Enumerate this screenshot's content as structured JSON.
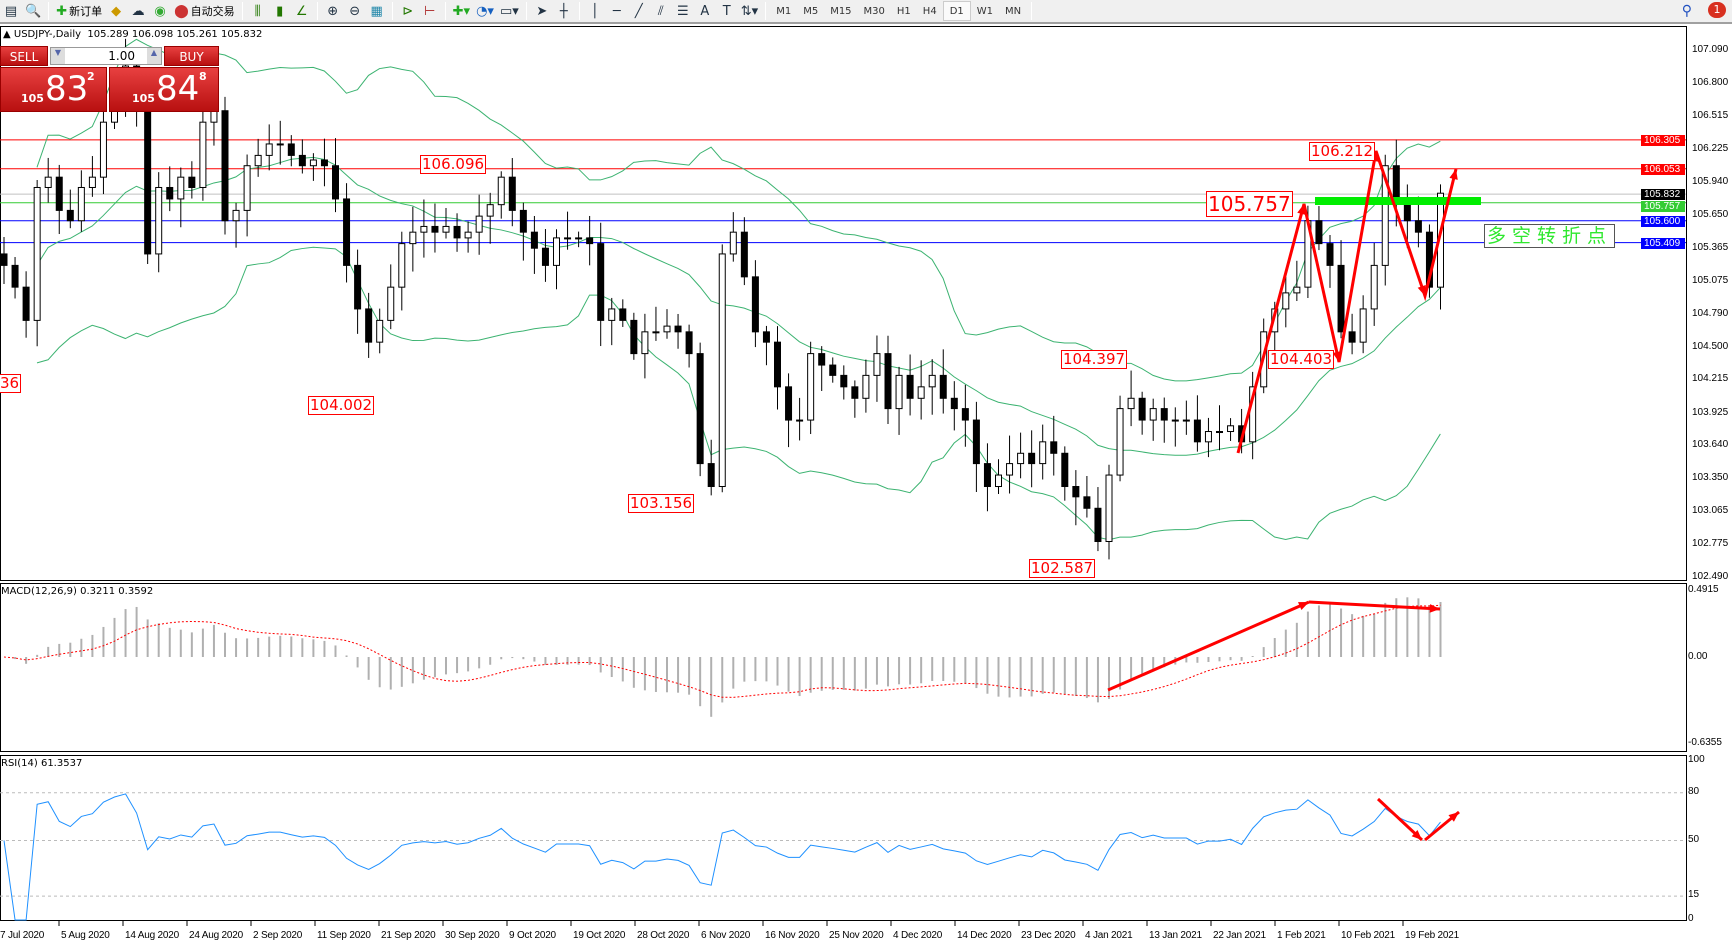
{
  "toolbar": {
    "new_order": "新订单",
    "auto_trading": "自动交易",
    "timeframes": [
      "M1",
      "M5",
      "M15",
      "M30",
      "H1",
      "H4",
      "D1",
      "W1",
      "MN"
    ],
    "active_timeframe": "D1",
    "notifications": "1"
  },
  "chart": {
    "title": "USDJPY-,Daily",
    "ohlc": "105.289 106.098 105.261 105.832",
    "macd_label": "MACD(12,26,9) 0.3211 0.3592",
    "rsi_label": "RSI(14) 61.3537"
  },
  "one_click": {
    "sell": "SELL",
    "buy": "BUY",
    "lot": "1.00",
    "bid_big": "105",
    "bid_main": "83",
    "bid_sup": "2",
    "ask_big": "105",
    "ask_main": "84",
    "ask_sup": "8"
  },
  "price_axis": [
    "107.090",
    "106.800",
    "106.515",
    "106.225",
    "105.940",
    "105.650",
    "105.365",
    "105.075",
    "104.790",
    "104.500",
    "104.215",
    "103.925",
    "103.640",
    "103.350",
    "103.065",
    "102.775",
    "102.490"
  ],
  "macd_axis": [
    "0.4915",
    "0.00",
    "-0.6355"
  ],
  "rsi_axis": [
    "100",
    "80",
    "50",
    "15",
    "0"
  ],
  "dates": [
    "7 Jul 2020",
    "5 Aug 2020",
    "14 Aug 2020",
    "24 Aug 2020",
    "2 Sep 2020",
    "11 Sep 2020",
    "21 Sep 2020",
    "30 Sep 2020",
    "9 Oct 2020",
    "19 Oct 2020",
    "28 Oct 2020",
    "6 Nov 2020",
    "16 Nov 2020",
    "25 Nov 2020",
    "4 Dec 2020",
    "14 Dec 2020",
    "23 Dec 2020",
    "4 Jan 2021",
    "13 Jan 2021",
    "22 Jan 2021",
    "1 Feb 2021",
    "10 Feb 2021",
    "19 Feb 2021"
  ],
  "levels": [
    {
      "price": 106.305,
      "label": "106.305",
      "color": "#ff0000"
    },
    {
      "price": 106.053,
      "label": "106.053",
      "color": "#ff0000"
    },
    {
      "price": 105.832,
      "label": "105.832",
      "color": "#000000",
      "line": "#c0c0c0"
    },
    {
      "price": 105.757,
      "label": "105.757",
      "color": "#33cc33"
    },
    {
      "price": 105.6,
      "label": "105.600",
      "color": "#0000ff"
    },
    {
      "price": 105.409,
      "label": "105.409",
      "color": "#0000ff"
    }
  ],
  "annotations": [
    "106.096",
    "104.002",
    "103.156",
    "102.587",
    "104.397",
    "104.403",
    "106.212",
    "105.757",
    "36"
  ],
  "turning_point_text": "多空转折点",
  "colors": {
    "band": "#3cb371",
    "arrow": "#ff0000",
    "rsi": "#1e90ff",
    "signal": "#ff0000",
    "highlight": "#00ee00"
  },
  "chart_data": {
    "type": "candlestick",
    "symbol": "USDJPY",
    "timeframe": "Daily",
    "ylim": [
      102.49,
      107.09
    ],
    "close": [
      105.21,
      105.02,
      104.73,
      105.89,
      105.98,
      105.69,
      105.6,
      105.89,
      105.98,
      106.46,
      106.75,
      106.95,
      106.56,
      105.31,
      105.89,
      105.79,
      105.98,
      105.89,
      106.46,
      106.56,
      105.6,
      105.69,
      106.08,
      106.17,
      106.27,
      106.27,
      106.17,
      106.08,
      106.13,
      106.08,
      105.79,
      105.21,
      104.83,
      104.54,
      104.73,
      105.02,
      105.4,
      105.5,
      105.55,
      105.5,
      105.55,
      105.45,
      105.5,
      105.64,
      105.74,
      105.98,
      105.69,
      105.5,
      105.36,
      105.21,
      105.45,
      105.45,
      105.45,
      105.4,
      104.73,
      104.83,
      104.73,
      104.44,
      104.63,
      104.63,
      104.68,
      104.63,
      104.44,
      103.48,
      103.28,
      105.31,
      105.5,
      105.11,
      104.63,
      104.54,
      104.15,
      103.86,
      103.86,
      104.44,
      104.34,
      104.25,
      104.15,
      104.05,
      104.25,
      104.44,
      103.96,
      104.25,
      104.05,
      104.15,
      104.25,
      104.05,
      103.96,
      103.86,
      103.48,
      103.28,
      103.38,
      103.48,
      103.57,
      103.48,
      103.67,
      103.57,
      103.28,
      103.19,
      103.09,
      102.8,
      103.38,
      103.96,
      104.05,
      103.86,
      103.96,
      103.86,
      103.86,
      103.86,
      103.67,
      103.76,
      103.76,
      103.81,
      103.67,
      104.15,
      104.63,
      104.83,
      104.97,
      105.02,
      105.6,
      105.4,
      105.21,
      104.63,
      104.54,
      104.83,
      105.21,
      106.08,
      105.79,
      105.6,
      105.5,
      105.02,
      105.84
    ],
    "indicators": [
      "Bollinger Bands(20,2)",
      "MACD(12,26,9)",
      "RSI(14)"
    ]
  }
}
